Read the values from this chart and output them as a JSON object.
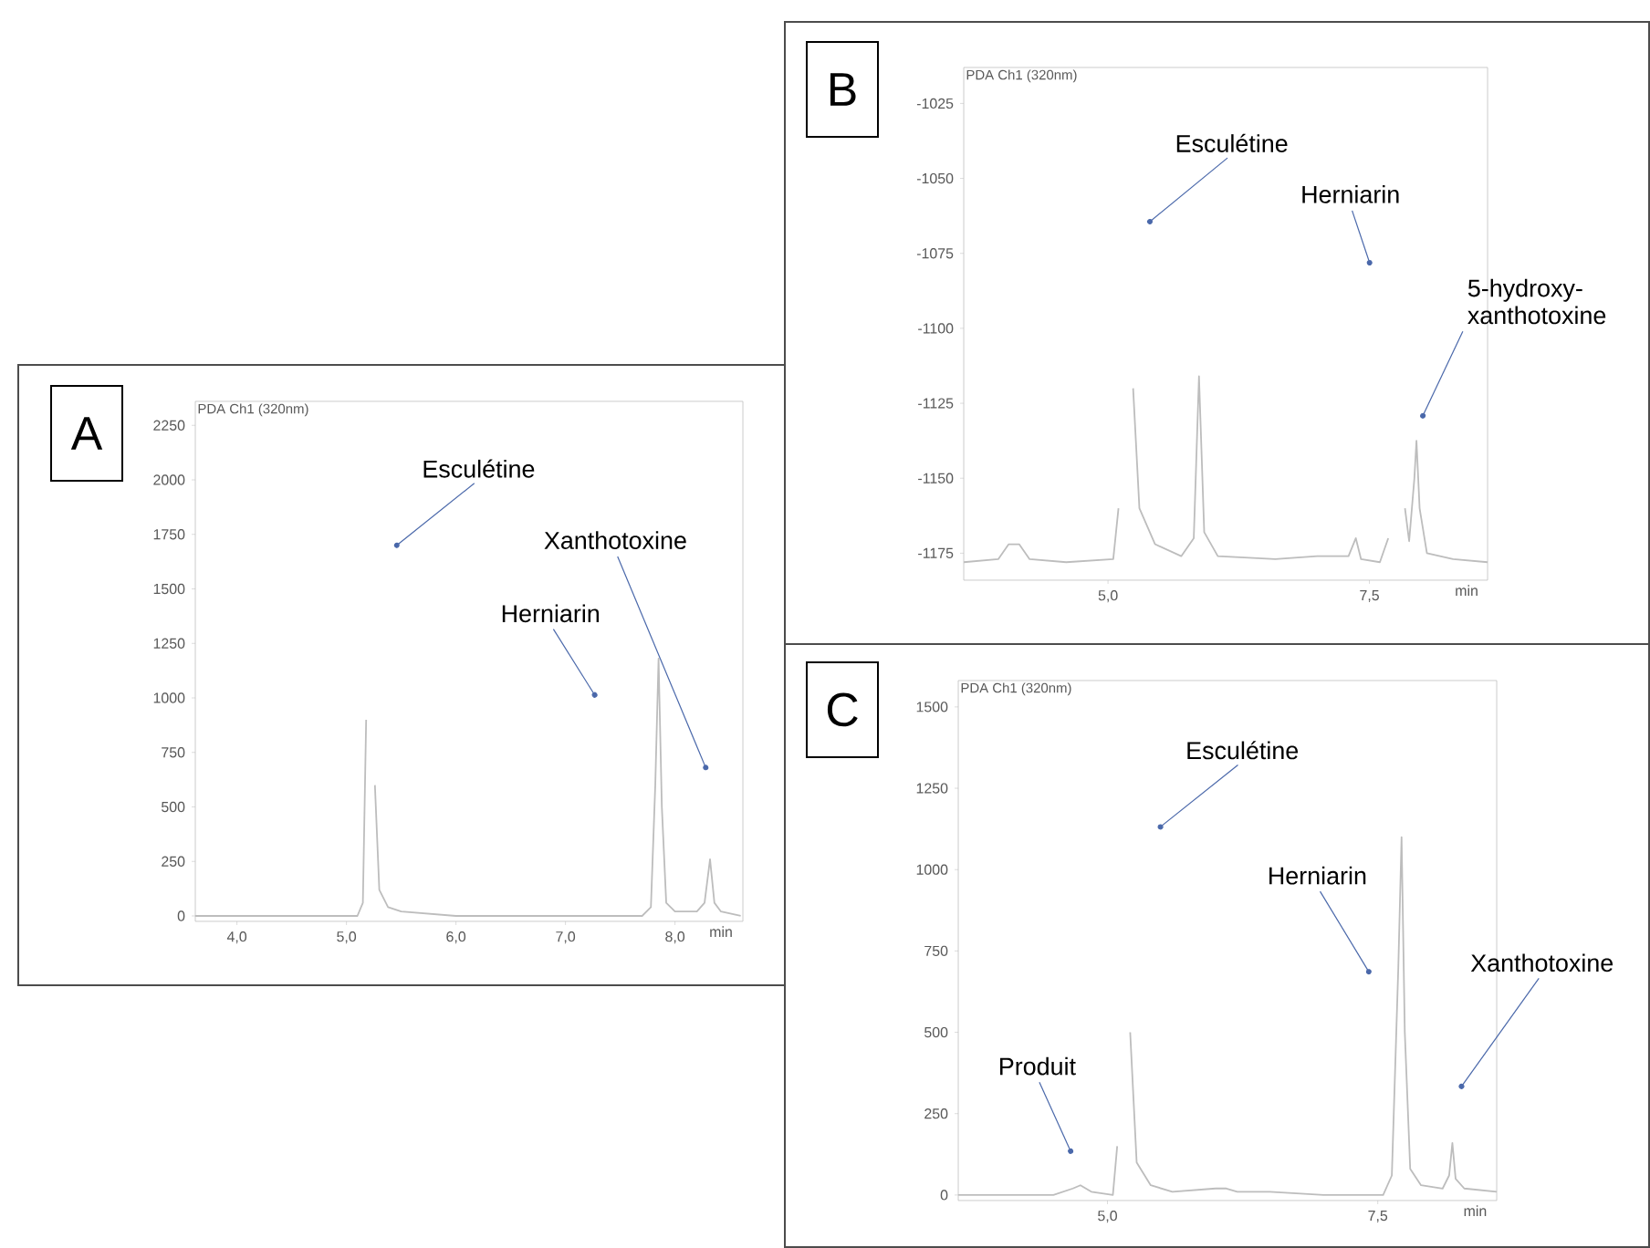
{
  "chart_data": [
    {
      "type": "line",
      "title": "A",
      "subtitle": "PDA Ch1 (320nm)",
      "xlabel": "min",
      "color": "#bdbdbd",
      "x": [
        3.62,
        4.5,
        5.1,
        5.15,
        5.18,
        5.2,
        5.23,
        5.26,
        5.3,
        5.38,
        5.5,
        6.0,
        7.0,
        7.7,
        7.78,
        7.82,
        7.85,
        7.88,
        7.92,
        8.0,
        8.2,
        8.27,
        8.32,
        8.36,
        8.42,
        8.6
      ],
      "values": [
        0,
        0,
        0,
        60,
        900,
        null,
        null,
        600,
        120,
        40,
        20,
        0,
        0,
        0,
        40,
        600,
        1180,
        500,
        60,
        20,
        20,
        60,
        260,
        60,
        20,
        0
      ],
      "xlim": [
        3.62,
        8.62
      ],
      "ylim": [
        -25,
        2360
      ],
      "xticks": [
        {
          "value": 4,
          "label": "4,0"
        },
        {
          "value": 5,
          "label": "5,0"
        },
        {
          "value": 6,
          "label": "6,0"
        },
        {
          "value": 7,
          "label": "7,0"
        },
        {
          "value": 8,
          "label": "8,0"
        }
      ],
      "yticks": [
        0,
        250,
        500,
        750,
        1000,
        1250,
        1500,
        1750,
        2000,
        2250
      ],
      "annotations": [
        {
          "text": "Esculétine",
          "x": 5.44,
          "y": 1692
        },
        {
          "text": "Herniarin",
          "x": 7.28,
          "y": 1003
        },
        {
          "text": "Xanthotoxine",
          "x": 8.29,
          "y": 669
        }
      ]
    },
    {
      "type": "line",
      "title": "B",
      "subtitle": "PDA Ch1 (320nm)",
      "xlabel": "min",
      "color": "#bdbdbd",
      "x": [
        3.62,
        3.95,
        4.05,
        4.15,
        4.25,
        4.6,
        5.05,
        5.1,
        5.14,
        5.2,
        5.24,
        5.3,
        5.45,
        5.7,
        5.82,
        5.87,
        5.92,
        6.05,
        6.6,
        7.0,
        7.3,
        7.37,
        7.42,
        7.6,
        7.68,
        7.73,
        7.8,
        7.84,
        7.88,
        7.93,
        7.95,
        7.98,
        8.05,
        8.3,
        8.63
      ],
      "values": [
        -1178,
        -1177,
        -1172,
        -1172,
        -1177,
        -1178,
        -1177,
        -1160,
        null,
        null,
        -1120,
        -1160,
        -1172,
        -1176,
        -1170,
        -1116,
        -1168,
        -1176,
        -1177,
        -1176,
        -1176,
        -1170,
        -1177,
        -1178,
        -1170,
        null,
        null,
        -1160,
        -1171,
        -1150,
        -1137.5,
        -1160,
        -1175,
        -1177,
        -1178
      ],
      "xlim": [
        3.62,
        8.63
      ],
      "ylim": [
        -1184,
        -1013
      ],
      "xticks": [
        {
          "value": 5,
          "label": "5,0"
        },
        {
          "value": 7.5,
          "label": "7,5"
        }
      ],
      "yticks": [
        -1175,
        -1150,
        -1125,
        -1100,
        -1075,
        -1050,
        -1025
      ],
      "annotations": [
        {
          "text": "Esculétine",
          "x": 5.38,
          "y": -1065
        },
        {
          "text": "Herniarin",
          "x": 7.51,
          "y": -1079
        },
        {
          "text": "5-hydroxy-xanthotoxine",
          "x": 8.0,
          "y": -1130
        }
      ]
    },
    {
      "type": "line",
      "title": "C",
      "subtitle": "PDA Ch1 (320nm)",
      "xlabel": "min",
      "color": "#bdbdbd",
      "x": [
        3.62,
        4.5,
        4.68,
        4.75,
        4.85,
        5.05,
        5.09,
        5.12,
        5.17,
        5.21,
        5.27,
        5.4,
        5.6,
        6.0,
        6.1,
        6.2,
        6.5,
        7.0,
        7.55,
        7.63,
        7.69,
        7.72,
        7.75,
        7.8,
        7.9,
        8.1,
        8.16,
        8.19,
        8.22,
        8.3,
        8.6
      ],
      "values": [
        0,
        0,
        20,
        30,
        10,
        0,
        150,
        null,
        null,
        500,
        100,
        30,
        10,
        20,
        20,
        10,
        10,
        0,
        0,
        60,
        700,
        1100,
        500,
        80,
        30,
        20,
        60,
        160,
        50,
        20,
        10
      ],
      "xlim": [
        3.62,
        8.6
      ],
      "ylim": [
        -17,
        1581
      ],
      "xticks": [
        {
          "value": 5,
          "label": "5,0"
        },
        {
          "value": 7.5,
          "label": "7,5"
        }
      ],
      "yticks": [
        0,
        250,
        500,
        750,
        1000,
        1250,
        1500
      ],
      "annotations": [
        {
          "text": "Esculétine",
          "x": 5.47,
          "y": 1126
        },
        {
          "text": "Herniarin",
          "x": 7.43,
          "y": 679
        },
        {
          "text": "Xanthotoxine",
          "x": 8.26,
          "y": 327
        },
        {
          "text": "Produit",
          "x": 4.67,
          "y": 127
        }
      ]
    }
  ]
}
